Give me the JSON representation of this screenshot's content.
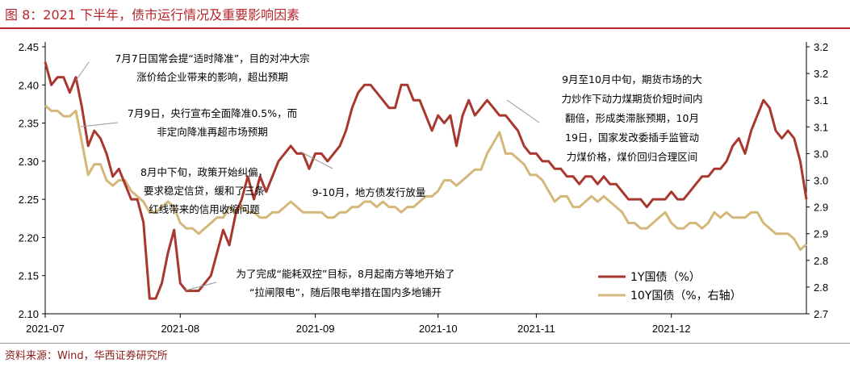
{
  "header": {
    "title": "图 8：2021 下半年，债市运行情况及重要影响因素"
  },
  "footer": {
    "source": "资料来源：Wind，华西证券研究所"
  },
  "chart_data": {
    "type": "line",
    "x_ticks": [
      "2021-07",
      "2021-08",
      "2021-09",
      "2021-10",
      "2021-11",
      "2021-12"
    ],
    "ylim_left": [
      2.1,
      2.45
    ],
    "yticks_left": [
      "2.10",
      "2.15",
      "2.20",
      "2.25",
      "2.30",
      "2.35",
      "2.40",
      "2.45"
    ],
    "ylim_right": [
      2.7,
      3.2
    ],
    "yticks_right": [
      "2.7",
      "2.8",
      "2.8",
      "2.9",
      "2.9",
      "3.0",
      "3.0",
      "3.1",
      "3.1",
      "3.2",
      "3.2"
    ],
    "legend_position": "bottom-right",
    "series": [
      {
        "name": "1Y国债（%）",
        "axis": "left",
        "color": "#a8382f",
        "x": [
          "2021-07-01",
          "2021-07-02",
          "2021-07-05",
          "2021-07-06",
          "2021-07-07",
          "2021-07-08",
          "2021-07-09",
          "2021-07-12",
          "2021-07-13",
          "2021-07-14",
          "2021-07-15",
          "2021-07-16",
          "2021-07-19",
          "2021-07-20",
          "2021-07-21",
          "2021-07-22",
          "2021-07-23",
          "2021-07-26",
          "2021-07-27",
          "2021-07-28",
          "2021-07-29",
          "2021-07-30",
          "2021-08-02",
          "2021-08-03",
          "2021-08-04",
          "2021-08-05",
          "2021-08-06",
          "2021-08-09",
          "2021-08-10",
          "2021-08-11",
          "2021-08-12",
          "2021-08-13",
          "2021-08-16",
          "2021-08-17",
          "2021-08-18",
          "2021-08-19",
          "2021-08-20",
          "2021-08-23",
          "2021-08-24",
          "2021-08-25",
          "2021-08-26",
          "2021-08-27",
          "2021-08-30",
          "2021-08-31",
          "2021-09-01",
          "2021-09-02",
          "2021-09-03",
          "2021-09-06",
          "2021-09-07",
          "2021-09-08",
          "2021-09-09",
          "2021-09-10",
          "2021-09-13",
          "2021-09-14",
          "2021-09-15",
          "2021-09-16",
          "2021-09-17",
          "2021-09-22",
          "2021-09-23",
          "2021-09-24",
          "2021-09-27",
          "2021-09-28",
          "2021-09-29",
          "2021-09-30",
          "2021-10-08",
          "2021-10-11",
          "2021-10-12",
          "2021-10-13",
          "2021-10-14",
          "2021-10-15",
          "2021-10-18",
          "2021-10-19",
          "2021-10-20",
          "2021-10-21",
          "2021-10-22",
          "2021-10-25",
          "2021-10-26",
          "2021-10-27",
          "2021-10-28",
          "2021-10-29",
          "2021-11-01",
          "2021-11-02",
          "2021-11-03",
          "2021-11-04",
          "2021-11-05",
          "2021-11-08",
          "2021-11-09",
          "2021-11-10",
          "2021-11-11",
          "2021-11-12",
          "2021-11-15",
          "2021-11-16",
          "2021-11-17",
          "2021-11-18",
          "2021-11-19",
          "2021-11-22",
          "2021-11-23",
          "2021-11-24",
          "2021-11-25",
          "2021-11-26",
          "2021-11-29",
          "2021-11-30",
          "2021-12-01",
          "2021-12-02",
          "2021-12-03",
          "2021-12-06",
          "2021-12-07",
          "2021-12-08",
          "2021-12-09",
          "2021-12-10",
          "2021-12-13",
          "2021-12-14",
          "2021-12-15",
          "2021-12-16",
          "2021-12-17",
          "2021-12-20",
          "2021-12-21",
          "2021-12-22",
          "2021-12-23",
          "2021-12-24",
          "2021-12-27",
          "2021-12-28",
          "2021-12-29",
          "2021-12-30",
          "2021-12-31"
        ],
        "values": [
          2.43,
          2.4,
          2.41,
          2.41,
          2.39,
          2.41,
          2.37,
          2.32,
          2.34,
          2.33,
          2.31,
          2.28,
          2.29,
          2.27,
          2.25,
          2.25,
          2.22,
          2.12,
          2.12,
          2.14,
          2.18,
          2.21,
          2.14,
          2.13,
          2.13,
          2.13,
          2.14,
          2.15,
          2.18,
          2.21,
          2.19,
          2.23,
          2.25,
          2.28,
          2.25,
          2.28,
          2.26,
          2.28,
          2.3,
          2.31,
          2.32,
          2.31,
          2.31,
          2.29,
          2.31,
          2.31,
          2.3,
          2.31,
          2.32,
          2.34,
          2.37,
          2.39,
          2.4,
          2.4,
          2.39,
          2.38,
          2.37,
          2.37,
          2.4,
          2.4,
          2.38,
          2.38,
          2.36,
          2.34,
          2.36,
          2.35,
          2.36,
          2.32,
          2.36,
          2.38,
          2.36,
          2.37,
          2.38,
          2.37,
          2.36,
          2.36,
          2.35,
          2.34,
          2.32,
          2.31,
          2.31,
          2.3,
          2.3,
          2.29,
          2.29,
          2.28,
          2.28,
          2.27,
          2.28,
          2.28,
          2.27,
          2.28,
          2.27,
          2.27,
          2.26,
          2.25,
          2.25,
          2.25,
          2.24,
          2.25,
          2.25,
          2.25,
          2.26,
          2.25,
          2.25,
          2.26,
          2.27,
          2.28,
          2.28,
          2.29,
          2.29,
          2.3,
          2.32,
          2.33,
          2.31,
          2.34,
          2.36,
          2.38,
          2.37,
          2.34,
          2.33,
          2.34,
          2.33,
          2.3,
          2.25
        ],
        "legend_label": "1Y国债（%）"
      },
      {
        "name": "10Y国债（%，右轴）",
        "axis": "right",
        "color": "#d4b77a",
        "values": [
          3.09,
          3.08,
          3.08,
          3.07,
          3.07,
          3.08,
          3.02,
          2.96,
          2.98,
          2.98,
          2.95,
          2.94,
          2.95,
          2.95,
          2.93,
          2.92,
          2.91,
          2.89,
          2.89,
          2.9,
          2.91,
          2.9,
          2.87,
          2.86,
          2.86,
          2.85,
          2.86,
          2.87,
          2.88,
          2.88,
          2.9,
          2.89,
          2.9,
          2.89,
          2.89,
          2.88,
          2.88,
          2.89,
          2.89,
          2.9,
          2.91,
          2.9,
          2.89,
          2.89,
          2.89,
          2.89,
          2.88,
          2.88,
          2.89,
          2.89,
          2.9,
          2.9,
          2.91,
          2.91,
          2.9,
          2.91,
          2.9,
          2.9,
          2.89,
          2.9,
          2.9,
          2.91,
          2.92,
          2.92,
          2.93,
          2.95,
          2.95,
          2.94,
          2.95,
          2.96,
          2.97,
          2.97,
          3.0,
          3.02,
          3.04,
          3.0,
          3.0,
          2.99,
          2.98,
          2.96,
          2.96,
          2.95,
          2.93,
          2.91,
          2.92,
          2.92,
          2.9,
          2.9,
          2.91,
          2.92,
          2.91,
          2.92,
          2.91,
          2.9,
          2.89,
          2.87,
          2.87,
          2.86,
          2.86,
          2.87,
          2.88,
          2.89,
          2.87,
          2.86,
          2.86,
          2.87,
          2.87,
          2.86,
          2.87,
          2.89,
          2.88,
          2.89,
          2.88,
          2.88,
          2.88,
          2.89,
          2.89,
          2.87,
          2.86,
          2.85,
          2.85,
          2.85,
          2.84,
          2.82,
          2.83
        ],
        "legend_label": "10Y国债（%，右轴）"
      }
    ],
    "annotations": [
      {
        "lines": [
          "7月7日国常会提“适时降准”，目的对冲大宗",
          "涨价给企业带来的影响，超出预期"
        ]
      },
      {
        "lines": [
          "7月9日，央行宣布全面降准0.5%，而",
          "非定向降准再超市场预期"
        ]
      },
      {
        "lines": [
          "8月中下旬，政策开始纠偏，",
          "要求稳定信贷，缓和了三条",
          "红线带来的信用收缩问题"
        ]
      },
      {
        "lines": [
          "9-10月，地方债发行放量"
        ]
      },
      {
        "lines": [
          "为了完成“能耗双控”目标，8月起南方等地开始了",
          "“拉闸限电”，随后限电举措在国内多地铺开"
        ]
      },
      {
        "lines": [
          "9月至10月中旬，期货市场的大",
          "力炒作下动力煤期货价短时间内",
          "翻倍，形成类滞胀预期，10月",
          "19日，国家发改委插手监管动",
          "力煤价格，煤价回归合理区间"
        ]
      }
    ]
  }
}
